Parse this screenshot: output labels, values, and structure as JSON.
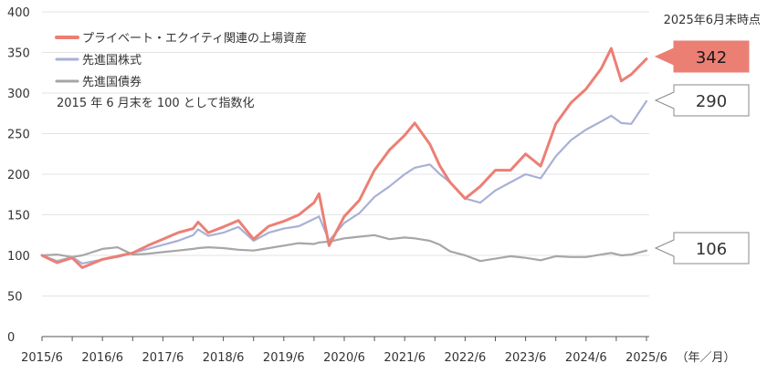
{
  "chart_data": {
    "type": "line",
    "annotation_top_right": "2025年6月末時点",
    "note": "2015 年 6 月末を 100 として指数化",
    "xunit_label": "（年／月）",
    "ylim": [
      0,
      400
    ],
    "yticks": [
      0,
      50,
      100,
      150,
      200,
      250,
      300,
      350,
      400
    ],
    "xticks": [
      "2015/6",
      "2016/6",
      "2017/6",
      "2018/6",
      "2019/6",
      "2020/6",
      "2021/6",
      "2022/6",
      "2023/6",
      "2024/6",
      "2025/6"
    ],
    "grid": true,
    "legend_position": "top-left",
    "series": [
      {
        "name": "プライベート・エクイティ関連の上場資産",
        "color": "#ec7f74",
        "end_value": "342",
        "points": [
          [
            "2015/6",
            100
          ],
          [
            "2015/9",
            91
          ],
          [
            "2015/12",
            97
          ],
          [
            "2016/2",
            85
          ],
          [
            "2016/6",
            95
          ],
          [
            "2016/9",
            99
          ],
          [
            "2016/12",
            103
          ],
          [
            "2017/3",
            112
          ],
          [
            "2017/6",
            120
          ],
          [
            "2017/9",
            128
          ],
          [
            "2017/12",
            133
          ],
          [
            "2018/1",
            141
          ],
          [
            "2018/3",
            128
          ],
          [
            "2018/6",
            135
          ],
          [
            "2018/9",
            143
          ],
          [
            "2018/12",
            120
          ],
          [
            "2019/3",
            136
          ],
          [
            "2019/6",
            142
          ],
          [
            "2019/9",
            150
          ],
          [
            "2019/12",
            165
          ],
          [
            "2020/1",
            176
          ],
          [
            "2020/3",
            112
          ],
          [
            "2020/6",
            148
          ],
          [
            "2020/9",
            168
          ],
          [
            "2020/12",
            205
          ],
          [
            "2021/3",
            230
          ],
          [
            "2021/6",
            248
          ],
          [
            "2021/8",
            263
          ],
          [
            "2021/11",
            237
          ],
          [
            "2022/1",
            210
          ],
          [
            "2022/3",
            190
          ],
          [
            "2022/6",
            170
          ],
          [
            "2022/9",
            185
          ],
          [
            "2022/12",
            205
          ],
          [
            "2023/3",
            205
          ],
          [
            "2023/6",
            225
          ],
          [
            "2023/9",
            210
          ],
          [
            "2023/12",
            262
          ],
          [
            "2024/3",
            288
          ],
          [
            "2024/6",
            305
          ],
          [
            "2024/9",
            330
          ],
          [
            "2024/11",
            355
          ],
          [
            "2025/1",
            315
          ],
          [
            "2025/3",
            323
          ],
          [
            "2025/6",
            342
          ]
        ]
      },
      {
        "name": "先進国株式",
        "color": "#a9b0d6",
        "end_value": "290",
        "points": [
          [
            "2015/6",
            100
          ],
          [
            "2015/9",
            93
          ],
          [
            "2015/12",
            98
          ],
          [
            "2016/2",
            90
          ],
          [
            "2016/6",
            95
          ],
          [
            "2016/9",
            98
          ],
          [
            "2016/12",
            103
          ],
          [
            "2017/3",
            108
          ],
          [
            "2017/6",
            113
          ],
          [
            "2017/9",
            118
          ],
          [
            "2017/12",
            125
          ],
          [
            "2018/1",
            132
          ],
          [
            "2018/3",
            124
          ],
          [
            "2018/6",
            128
          ],
          [
            "2018/9",
            135
          ],
          [
            "2018/12",
            118
          ],
          [
            "2019/3",
            128
          ],
          [
            "2019/6",
            133
          ],
          [
            "2019/9",
            136
          ],
          [
            "2019/12",
            145
          ],
          [
            "2020/1",
            148
          ],
          [
            "2020/3",
            118
          ],
          [
            "2020/6",
            140
          ],
          [
            "2020/9",
            152
          ],
          [
            "2020/12",
            172
          ],
          [
            "2021/3",
            185
          ],
          [
            "2021/6",
            200
          ],
          [
            "2021/8",
            208
          ],
          [
            "2021/11",
            212
          ],
          [
            "2022/1",
            200
          ],
          [
            "2022/3",
            190
          ],
          [
            "2022/6",
            170
          ],
          [
            "2022/9",
            165
          ],
          [
            "2022/12",
            180
          ],
          [
            "2023/3",
            190
          ],
          [
            "2023/6",
            200
          ],
          [
            "2023/9",
            195
          ],
          [
            "2023/12",
            222
          ],
          [
            "2024/3",
            242
          ],
          [
            "2024/6",
            255
          ],
          [
            "2024/9",
            265
          ],
          [
            "2024/11",
            272
          ],
          [
            "2025/1",
            263
          ],
          [
            "2025/3",
            262
          ],
          [
            "2025/6",
            290
          ]
        ]
      },
      {
        "name": "先進国債券",
        "color": "#a6a6a6",
        "end_value": "106",
        "points": [
          [
            "2015/6",
            100
          ],
          [
            "2015/9",
            101
          ],
          [
            "2015/12",
            98
          ],
          [
            "2016/2",
            100
          ],
          [
            "2016/6",
            108
          ],
          [
            "2016/9",
            110
          ],
          [
            "2016/12",
            101
          ],
          [
            "2017/3",
            102
          ],
          [
            "2017/6",
            104
          ],
          [
            "2017/9",
            106
          ],
          [
            "2017/12",
            108
          ],
          [
            "2018/1",
            109
          ],
          [
            "2018/3",
            110
          ],
          [
            "2018/6",
            109
          ],
          [
            "2018/9",
            107
          ],
          [
            "2018/12",
            106
          ],
          [
            "2019/3",
            109
          ],
          [
            "2019/6",
            112
          ],
          [
            "2019/9",
            115
          ],
          [
            "2019/12",
            114
          ],
          [
            "2020/1",
            116
          ],
          [
            "2020/3",
            117
          ],
          [
            "2020/6",
            121
          ],
          [
            "2020/9",
            123
          ],
          [
            "2020/12",
            125
          ],
          [
            "2021/3",
            120
          ],
          [
            "2021/6",
            122
          ],
          [
            "2021/8",
            121
          ],
          [
            "2021/11",
            118
          ],
          [
            "2022/1",
            113
          ],
          [
            "2022/3",
            105
          ],
          [
            "2022/6",
            100
          ],
          [
            "2022/9",
            93
          ],
          [
            "2022/12",
            96
          ],
          [
            "2023/3",
            99
          ],
          [
            "2023/6",
            97
          ],
          [
            "2023/9",
            94
          ],
          [
            "2023/12",
            99
          ],
          [
            "2024/3",
            98
          ],
          [
            "2024/6",
            98
          ],
          [
            "2024/9",
            101
          ],
          [
            "2024/11",
            103
          ],
          [
            "2025/1",
            100
          ],
          [
            "2025/3",
            101
          ],
          [
            "2025/6",
            106
          ]
        ]
      }
    ]
  }
}
